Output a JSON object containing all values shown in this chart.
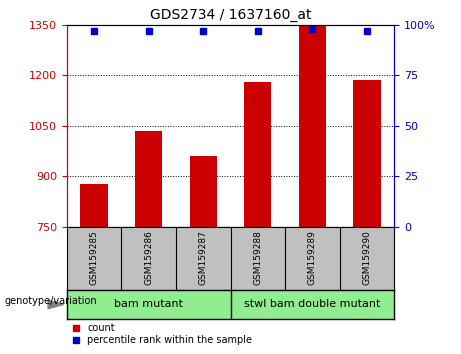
{
  "title": "GDS2734 / 1637160_at",
  "samples": [
    "GSM159285",
    "GSM159286",
    "GSM159287",
    "GSM159288",
    "GSM159289",
    "GSM159290"
  ],
  "counts": [
    878,
    1035,
    960,
    1180,
    1345,
    1185
  ],
  "percentile_ranks": [
    97,
    97,
    97,
    97,
    98,
    97
  ],
  "ylim_left": [
    750,
    1350
  ],
  "ylim_right": [
    0,
    100
  ],
  "yticks_left": [
    750,
    900,
    1050,
    1200,
    1350
  ],
  "yticks_right": [
    0,
    25,
    50,
    75,
    100
  ],
  "bar_color": "#CC0000",
  "dot_color": "#0000CC",
  "bar_width": 0.5,
  "plot_bg": "#FFFFFF",
  "xlabel_area_color": "#C0C0C0",
  "group_area_color": "#90EE90",
  "legend_count_color": "#CC0000",
  "legend_pct_color": "#0000CC",
  "group1_label": "bam mutant",
  "group2_label": "stwl bam double mutant",
  "geno_label": "genotype/variation",
  "legend_count_text": "count",
  "legend_pct_text": "percentile rank within the sample",
  "right_axis_suffix": "%"
}
